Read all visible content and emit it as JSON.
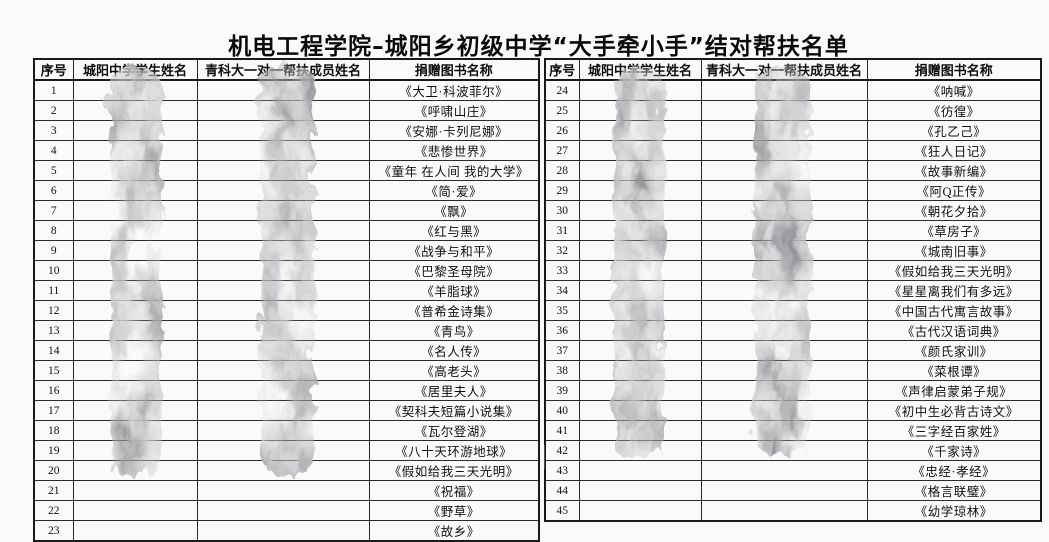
{
  "page": {
    "title": "机电工程学院–城阳乡初级中学“大手牵小手”结对帮扶名单",
    "background": "#fafafa",
    "border_color": "#1a1a1a",
    "text_color": "#111111",
    "redaction_icon": "redaction-smudge",
    "redaction_color": "#6b6b6b"
  },
  "tables": [
    {
      "headers": {
        "no": "序号",
        "student": "城阳中学学生姓名",
        "helper": "青科大一对一帮扶成员姓名",
        "book": "捐赠图书名称"
      },
      "rows": [
        {
          "no": "1",
          "book": "《大卫·科波菲尔》"
        },
        {
          "no": "2",
          "book": "《呼啸山庄》"
        },
        {
          "no": "3",
          "book": "《安娜·卡列尼娜》"
        },
        {
          "no": "4",
          "book": "《悲惨世界》"
        },
        {
          "no": "5",
          "book": "《童年 在人间 我的大学》"
        },
        {
          "no": "6",
          "book": "《简·爱》"
        },
        {
          "no": "7",
          "book": "《飘》"
        },
        {
          "no": "8",
          "book": "《红与黑》"
        },
        {
          "no": "9",
          "book": "《战争与和平》"
        },
        {
          "no": "10",
          "book": "《巴黎圣母院》"
        },
        {
          "no": "11",
          "book": "《羊脂球》"
        },
        {
          "no": "12",
          "book": "《普希金诗集》"
        },
        {
          "no": "13",
          "book": "《青鸟》"
        },
        {
          "no": "14",
          "book": "《名人传》"
        },
        {
          "no": "15",
          "book": "《高老头》"
        },
        {
          "no": "16",
          "book": "《居里夫人》"
        },
        {
          "no": "17",
          "book": "《契科夫短篇小说集》"
        },
        {
          "no": "18",
          "book": "《瓦尔登湖》"
        },
        {
          "no": "19",
          "book": "《八十天环游地球》"
        },
        {
          "no": "20",
          "book": "《假如给我三天光明》"
        },
        {
          "no": "21",
          "book": "《祝福》"
        },
        {
          "no": "22",
          "book": "《野草》"
        },
        {
          "no": "23",
          "book": "《故乡》"
        }
      ]
    },
    {
      "headers": {
        "no": "序号",
        "student": "城阳中学学生姓名",
        "helper": "青科大一对一帮扶成员姓名",
        "book": "捐赠图书名称"
      },
      "rows": [
        {
          "no": "24",
          "book": "《呐喊》"
        },
        {
          "no": "25",
          "book": "《彷徨》"
        },
        {
          "no": "26",
          "book": "《孔乙己》"
        },
        {
          "no": "27",
          "book": "《狂人日记》"
        },
        {
          "no": "28",
          "book": "《故事新编》"
        },
        {
          "no": "29",
          "book": "《阿Q正传》"
        },
        {
          "no": "30",
          "book": "《朝花夕拾》"
        },
        {
          "no": "31",
          "book": "《草房子》"
        },
        {
          "no": "32",
          "book": "《城南旧事》"
        },
        {
          "no": "33",
          "book": "《假如给我三天光明》"
        },
        {
          "no": "34",
          "book": "《星星离我们有多远》"
        },
        {
          "no": "35",
          "book": "《中国古代寓言故事》"
        },
        {
          "no": "36",
          "book": "《古代汉语词典》"
        },
        {
          "no": "37",
          "book": "《颜氏家训》"
        },
        {
          "no": "38",
          "book": "《菜根谭》"
        },
        {
          "no": "39",
          "book": "《声律启蒙弟子规》"
        },
        {
          "no": "40",
          "book": "《初中生必背古诗文》"
        },
        {
          "no": "41",
          "book": "《三字经百家姓》"
        },
        {
          "no": "42",
          "book": "《千家诗》"
        },
        {
          "no": "43",
          "book": "《忠经·孝经》"
        },
        {
          "no": "44",
          "book": "《格言联璧》"
        },
        {
          "no": "45",
          "book": "《幼学琼林》"
        }
      ]
    }
  ]
}
